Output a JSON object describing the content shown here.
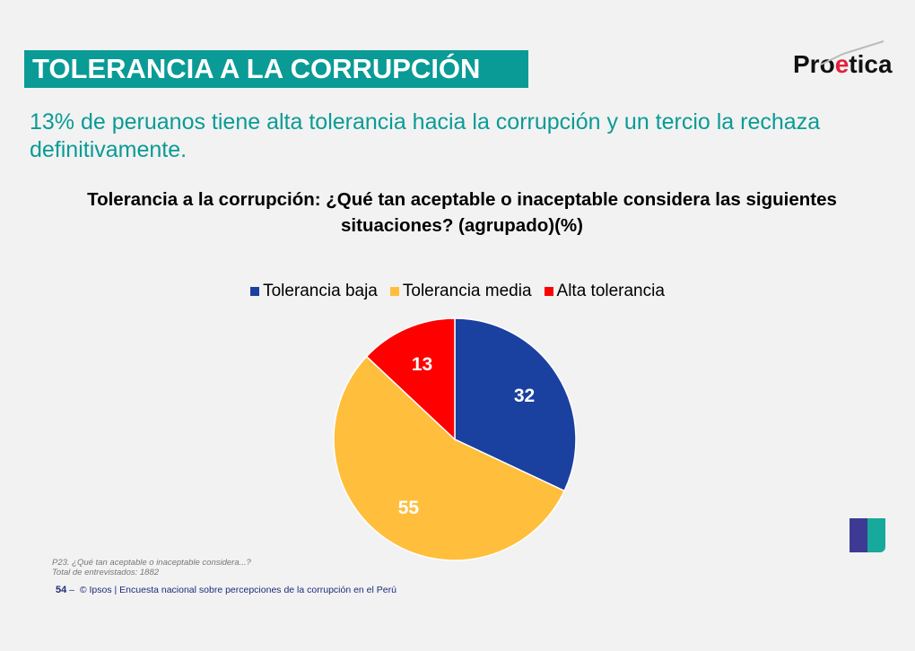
{
  "header": {
    "title": "TOLERANCIA A LA CORRUPCIÓN",
    "logo": "Proetica"
  },
  "subtitle": "13% de peruanos tiene alta tolerancia hacia la corrupción y un tercio la rechaza definitivamente.",
  "chart_data": {
    "type": "pie",
    "title": "Tolerancia a la corrupción: ¿Qué tan aceptable o inaceptable considera las siguientes situaciones? (agrupado)(%)",
    "categories": [
      "Tolerancia baja",
      "Tolerancia media",
      "Alta tolerancia"
    ],
    "values": [
      32,
      55,
      13
    ],
    "colors": [
      "#1a40a0",
      "#ffbe3c",
      "#ff0000"
    ],
    "legend_position": "top"
  },
  "footnote": {
    "question": "P23. ¿Qué tan aceptable o inaceptable considera...?",
    "total": "Total de entrevistados: 1882"
  },
  "footer": {
    "page": "54",
    "dash": "–",
    "text": "© Ipsos | Encuesta nacional sobre percepciones de la corrupción en el Perú"
  },
  "ipsos_logo": "Ipsos"
}
